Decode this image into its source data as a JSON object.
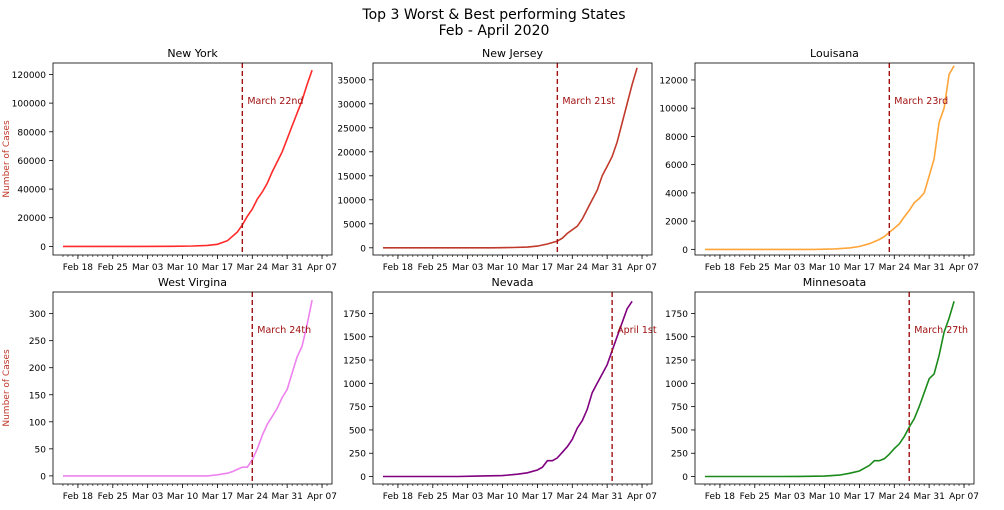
{
  "title_line1": "Top 3 Worst & Best performing States",
  "title_line2": "Feb - April 2020",
  "ylabel": "Number of Cases",
  "xticks": [
    "Feb 18",
    "Feb 25",
    "Mar 03",
    "Mar 10",
    "Mar 17",
    "Mar 24",
    "Mar 31",
    "Apr 07"
  ],
  "chart_data": [
    {
      "type": "line",
      "title": "New York",
      "color": "#ff2a2a",
      "ylabel": "Number of Cases",
      "ylim": [
        -6000,
        128000
      ],
      "yticks": [
        0,
        20000,
        40000,
        60000,
        80000,
        100000,
        120000
      ],
      "vline": {
        "x": "Mar 22",
        "label": "March 22nd"
      },
      "series": [
        {
          "points": [
            [
              "Feb 15",
              0
            ],
            [
              "Feb 22",
              0
            ],
            [
              "Mar 01",
              0
            ],
            [
              "Mar 08",
              50
            ],
            [
              "Mar 12",
              300
            ],
            [
              "Mar 15",
              700
            ],
            [
              "Mar 17",
              1500
            ],
            [
              "Mar 19",
              4000
            ],
            [
              "Mar 21",
              10000
            ],
            [
              "Mar 22",
              15000
            ],
            [
              "Mar 23",
              21000
            ],
            [
              "Mar 24",
              26000
            ],
            [
              "Mar 25",
              33000
            ],
            [
              "Mar 26",
              38000
            ],
            [
              "Mar 27",
              44000
            ],
            [
              "Mar 28",
              52000
            ],
            [
              "Mar 30",
              66000
            ],
            [
              "Apr 01",
              84000
            ],
            [
              "Apr 03",
              102000
            ],
            [
              "Apr 04",
              113000
            ],
            [
              "Apr 05",
              123000
            ]
          ]
        }
      ]
    },
    {
      "type": "line",
      "title": "New Jersey",
      "color": "#c0392b",
      "ylabel": "",
      "ylim": [
        -1500,
        38500
      ],
      "yticks": [
        0,
        5000,
        10000,
        15000,
        20000,
        25000,
        30000,
        35000
      ],
      "vline": {
        "x": "Mar 21",
        "label": "March 21st"
      },
      "series": [
        {
          "points": [
            [
              "Feb 15",
              0
            ],
            [
              "Feb 22",
              0
            ],
            [
              "Mar 01",
              0
            ],
            [
              "Mar 08",
              10
            ],
            [
              "Mar 12",
              60
            ],
            [
              "Mar 15",
              150
            ],
            [
              "Mar 17",
              350
            ],
            [
              "Mar 19",
              800
            ],
            [
              "Mar 21",
              1400
            ],
            [
              "Mar 22",
              2000
            ],
            [
              "Mar 23",
              3000
            ],
            [
              "Mar 25",
              4500
            ],
            [
              "Mar 26",
              6000
            ],
            [
              "Mar 27",
              8000
            ],
            [
              "Mar 28",
              10000
            ],
            [
              "Mar 29",
              12000
            ],
            [
              "Mar 30",
              15000
            ],
            [
              "Mar 31",
              17000
            ],
            [
              "Apr 01",
              19000
            ],
            [
              "Apr 02",
              22000
            ],
            [
              "Apr 04",
              30000
            ],
            [
              "Apr 05",
              34000
            ],
            [
              "Apr 06",
              37500
            ]
          ]
        }
      ]
    },
    {
      "type": "line",
      "title": "Louisana",
      "color": "#ffa53a",
      "ylabel": "",
      "ylim": [
        -400,
        13200
      ],
      "yticks": [
        0,
        2000,
        4000,
        6000,
        8000,
        10000,
        12000
      ],
      "vline": {
        "x": "Mar 23",
        "label": "March 23rd"
      },
      "series": [
        {
          "points": [
            [
              "Feb 15",
              0
            ],
            [
              "Feb 22",
              0
            ],
            [
              "Mar 01",
              0
            ],
            [
              "Mar 08",
              0
            ],
            [
              "Mar 12",
              30
            ],
            [
              "Mar 15",
              100
            ],
            [
              "Mar 17",
              200
            ],
            [
              "Mar 19",
              400
            ],
            [
              "Mar 21",
              700
            ],
            [
              "Mar 22",
              900
            ],
            [
              "Mar 23",
              1200
            ],
            [
              "Mar 24",
              1500
            ],
            [
              "Mar 25",
              1800
            ],
            [
              "Mar 26",
              2300
            ],
            [
              "Mar 27",
              2750
            ],
            [
              "Mar 28",
              3300
            ],
            [
              "Mar 29",
              3600
            ],
            [
              "Mar 30",
              4000
            ],
            [
              "Mar 31",
              5200
            ],
            [
              "Apr 01",
              6400
            ],
            [
              "Apr 02",
              9000
            ],
            [
              "Apr 03",
              10000
            ],
            [
              "Apr 04",
              12400
            ],
            [
              "Apr 05",
              13000
            ]
          ]
        }
      ]
    },
    {
      "type": "line",
      "title": "West Virgina",
      "color": "#ee82ee",
      "ylabel": "Number of Cases",
      "ylim": [
        -15,
        340
      ],
      "yticks": [
        0,
        50,
        100,
        150,
        200,
        250,
        300
      ],
      "vline": {
        "x": "Mar 24",
        "label": "March 24th"
      },
      "series": [
        {
          "points": [
            [
              "Feb 15",
              0
            ],
            [
              "Feb 22",
              0
            ],
            [
              "Mar 01",
              0
            ],
            [
              "Mar 08",
              0
            ],
            [
              "Mar 15",
              0
            ],
            [
              "Mar 17",
              2
            ],
            [
              "Mar 19",
              5
            ],
            [
              "Mar 20",
              8
            ],
            [
              "Mar 21",
              12
            ],
            [
              "Mar 22",
              16
            ],
            [
              "Mar 23",
              16
            ],
            [
              "Mar 24",
              30
            ],
            [
              "Mar 25",
              50
            ],
            [
              "Mar 26",
              75
            ],
            [
              "Mar 27",
              95
            ],
            [
              "Mar 28",
              110
            ],
            [
              "Mar 29",
              125
            ],
            [
              "Mar 30",
              145
            ],
            [
              "Mar 31",
              160
            ],
            [
              "Apr 01",
              190
            ],
            [
              "Apr 02",
              220
            ],
            [
              "Apr 03",
              240
            ],
            [
              "Apr 04",
              280
            ],
            [
              "Apr 05",
              325
            ]
          ]
        }
      ]
    },
    {
      "type": "line",
      "title": "Nevada",
      "color": "#800080",
      "ylabel": "",
      "ylim": [
        -80,
        1980
      ],
      "yticks": [
        0,
        250,
        500,
        750,
        1000,
        1250,
        1500,
        1750
      ],
      "vline": {
        "x": "Apr 01",
        "label": "April 1st"
      },
      "series": [
        {
          "points": [
            [
              "Feb 15",
              0
            ],
            [
              "Feb 22",
              0
            ],
            [
              "Mar 01",
              0
            ],
            [
              "Mar 05",
              5
            ],
            [
              "Mar 10",
              10
            ],
            [
              "Mar 13",
              25
            ],
            [
              "Mar 15",
              40
            ],
            [
              "Mar 17",
              70
            ],
            [
              "Mar 18",
              100
            ],
            [
              "Mar 19",
              170
            ],
            [
              "Mar 20",
              170
            ],
            [
              "Mar 21",
              200
            ],
            [
              "Mar 22",
              260
            ],
            [
              "Mar 23",
              320
            ],
            [
              "Mar 24",
              400
            ],
            [
              "Mar 25",
              520
            ],
            [
              "Mar 26",
              600
            ],
            [
              "Mar 27",
              720
            ],
            [
              "Mar 28",
              900
            ],
            [
              "Mar 29",
              1000
            ],
            [
              "Mar 30",
              1100
            ],
            [
              "Mar 31",
              1200
            ],
            [
              "Apr 01",
              1350
            ],
            [
              "Apr 02",
              1500
            ],
            [
              "Apr 03",
              1650
            ],
            [
              "Apr 04",
              1800
            ],
            [
              "Apr 05",
              1880
            ]
          ]
        }
      ]
    },
    {
      "type": "line",
      "title": "Minnesoata",
      "color": "#1a8a1a",
      "ylabel": "",
      "ylim": [
        -80,
        1980
      ],
      "yticks": [
        0,
        250,
        500,
        750,
        1000,
        1250,
        1500,
        1750
      ],
      "vline": {
        "x": "Mar 27",
        "label": "March 27th"
      },
      "series": [
        {
          "points": [
            [
              "Feb 15",
              0
            ],
            [
              "Feb 22",
              0
            ],
            [
              "Mar 01",
              0
            ],
            [
              "Mar 05",
              2
            ],
            [
              "Mar 10",
              5
            ],
            [
              "Mar 13",
              15
            ],
            [
              "Mar 15",
              35
            ],
            [
              "Mar 17",
              60
            ],
            [
              "Mar 18",
              90
            ],
            [
              "Mar 19",
              120
            ],
            [
              "Mar 20",
              170
            ],
            [
              "Mar 21",
              170
            ],
            [
              "Mar 22",
              190
            ],
            [
              "Mar 23",
              240
            ],
            [
              "Mar 24",
              300
            ],
            [
              "Mar 25",
              350
            ],
            [
              "Mar 26",
              430
            ],
            [
              "Mar 27",
              530
            ],
            [
              "Mar 28",
              620
            ],
            [
              "Mar 29",
              750
            ],
            [
              "Mar 30",
              900
            ],
            [
              "Mar 31",
              1050
            ],
            [
              "Apr 01",
              1100
            ],
            [
              "Apr 02",
              1300
            ],
            [
              "Apr 03",
              1550
            ],
            [
              "Apr 04",
              1700
            ],
            [
              "Apr 05",
              1880
            ]
          ]
        }
      ]
    }
  ]
}
